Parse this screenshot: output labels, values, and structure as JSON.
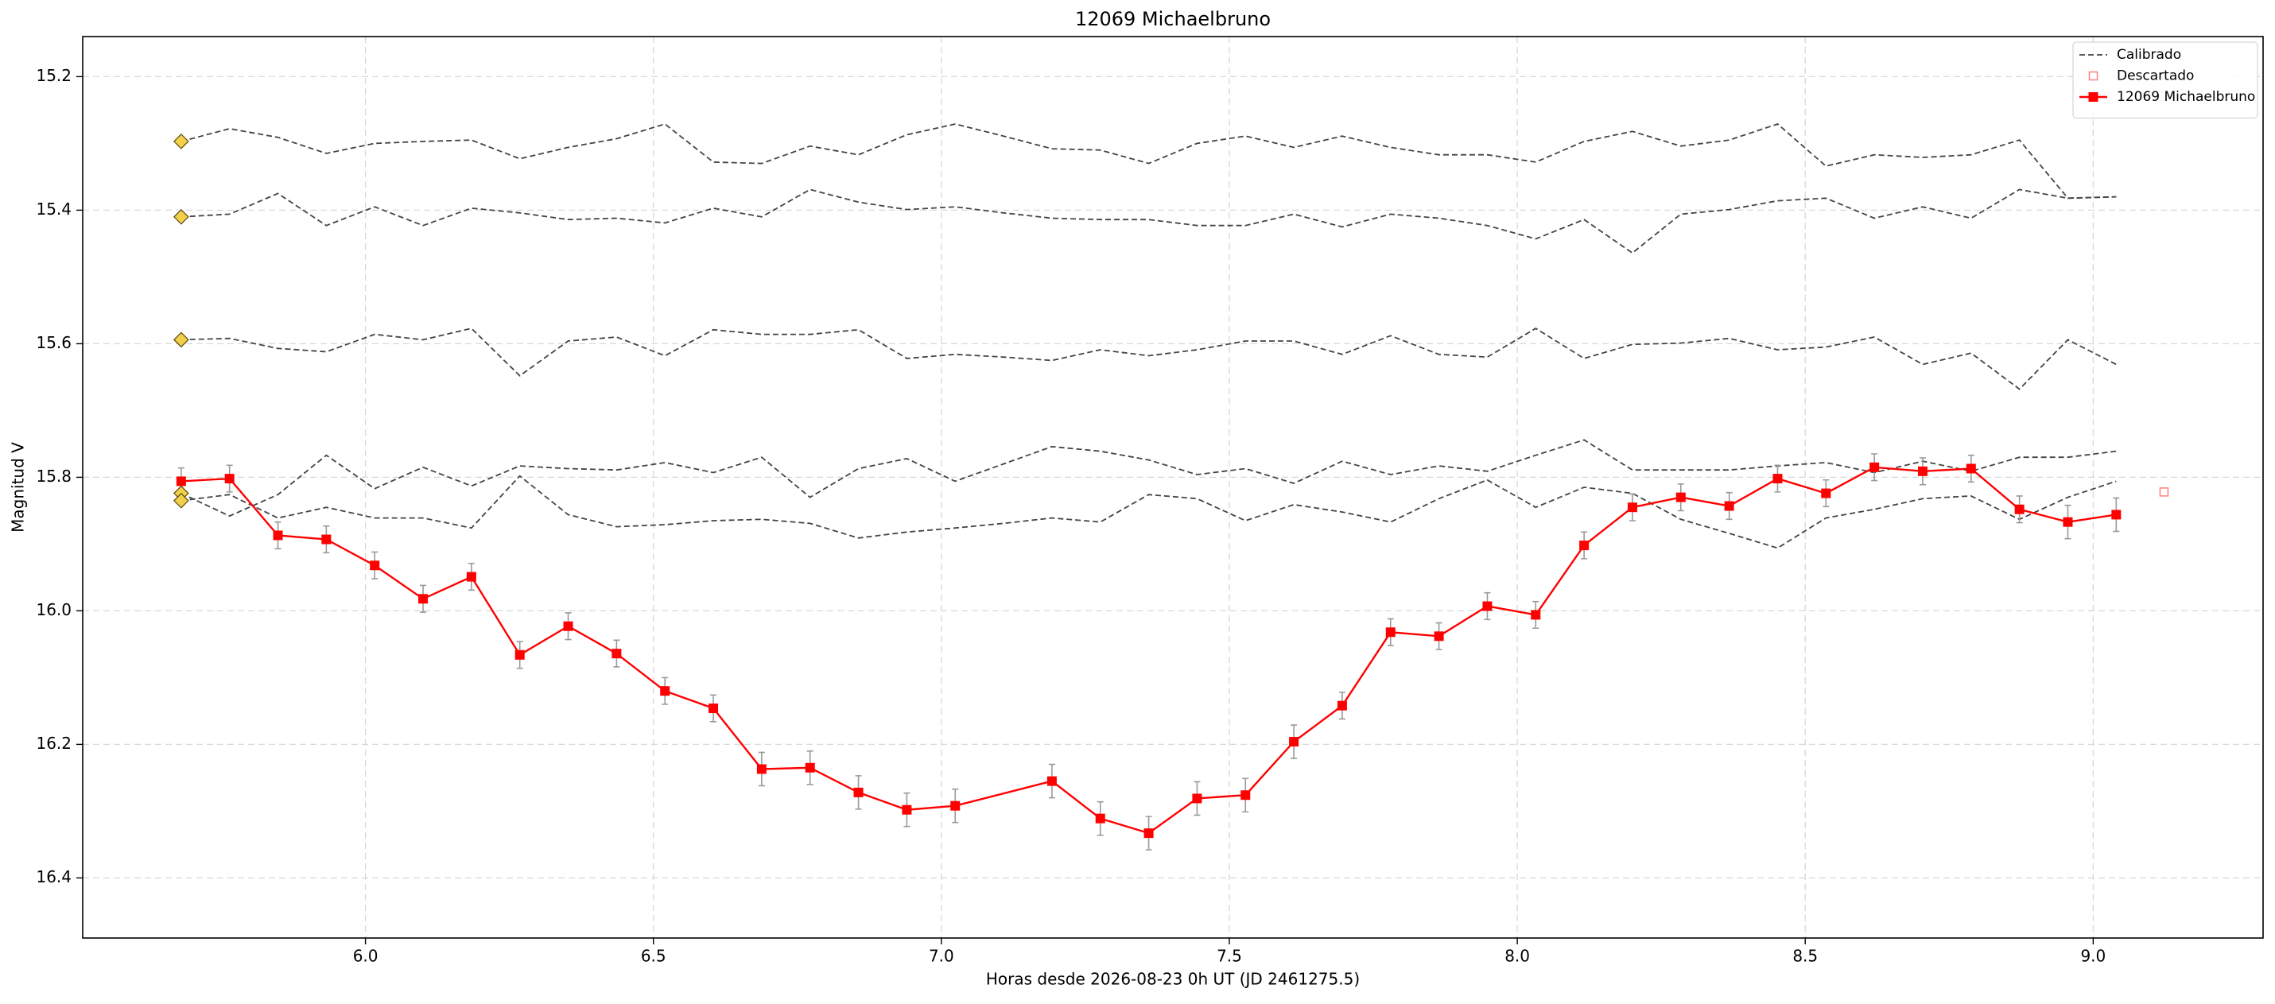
{
  "chart_data": {
    "type": "lightcurve",
    "title": "12069 Michaelbruno",
    "x_label": "Horas desde 2026-08-23 0h UT (JD 2461275.5)",
    "y_label": "Magnitud V",
    "xlim": [
      5.509,
      9.295
    ],
    "ylim": [
      15.14,
      16.49
    ],
    "y_inverted": true,
    "xticks": [
      {
        "value": 6,
        "label": "6.0"
      },
      6.5,
      {
        "value": 7,
        "label": "7.0"
      },
      7.5,
      {
        "value": 8,
        "label": "8.0"
      },
      8.5,
      {
        "value": 9,
        "label": "9.0"
      }
    ],
    "yticks": [
      15.2,
      15.4,
      15.6,
      15.8,
      {
        "value": 16,
        "label": "16.0"
      },
      16.2,
      16.4
    ],
    "grid": true,
    "legend_position": "upper-right",
    "series": [
      {
        "name": "Calibrado",
        "color": "#444444",
        "style": "dashed",
        "x": [
          5.68,
          5.764,
          5.848,
          5.932,
          6.016,
          6.1,
          6.184,
          6.268,
          6.352,
          6.436,
          6.52,
          6.604,
          6.688,
          6.772,
          6.856,
          6.94,
          7.024,
          7.108,
          7.192,
          7.276,
          7.36,
          7.444,
          7.528,
          7.612,
          7.696,
          7.78,
          7.864,
          7.948,
          8.032,
          8.116,
          8.2,
          8.284,
          8.368,
          8.452,
          8.536,
          8.62,
          8.704,
          8.788,
          8.872,
          8.956,
          9.04
        ],
        "lines": [
          [
            15.297,
            15.278,
            15.291,
            15.315,
            15.3,
            15.297,
            15.295,
            15.323,
            15.306,
            15.293,
            15.271,
            15.328,
            15.33,
            15.304,
            15.317,
            15.287,
            15.271,
            15.289,
            15.308,
            15.31,
            15.33,
            15.3,
            15.289,
            15.306,
            15.289,
            15.306,
            15.317,
            15.317,
            15.328,
            15.297,
            15.282,
            15.304,
            15.295,
            15.271,
            15.334,
            15.317,
            15.321,
            15.317,
            15.295,
            15.382,
            15.38
          ],
          [
            15.41,
            15.406,
            15.375,
            15.423,
            15.395,
            15.423,
            15.397,
            15.404,
            15.414,
            15.412,
            15.419,
            15.397,
            15.41,
            15.369,
            15.388,
            15.399,
            15.395,
            15.404,
            15.412,
            15.414,
            15.414,
            15.423,
            15.423,
            15.406,
            15.425,
            15.406,
            15.412,
            15.423,
            15.443,
            15.414,
            15.464,
            15.406,
            15.399,
            15.386,
            15.382,
            15.412,
            15.395,
            15.412,
            15.369,
            15.382,
            15.38
          ],
          [
            15.594,
            15.592,
            15.607,
            15.612,
            15.586,
            15.594,
            15.577,
            15.648,
            15.596,
            15.59,
            15.618,
            15.579,
            15.586,
            15.586,
            15.579,
            15.622,
            15.616,
            15.62,
            15.625,
            15.609,
            15.618,
            15.609,
            15.596,
            15.596,
            15.616,
            15.588,
            15.616,
            15.62,
            15.577,
            15.622,
            15.601,
            15.599,
            15.592,
            15.609,
            15.605,
            15.59,
            15.631,
            15.614,
            15.668,
            15.594,
            15.631
          ],
          [
            15.824,
            15.858,
            15.826,
            15.767,
            15.817,
            15.785,
            15.813,
            15.783,
            15.787,
            15.789,
            15.778,
            15.793,
            15.77,
            15.83,
            15.787,
            15.772,
            15.806,
            15.78,
            15.754,
            15.761,
            15.774,
            15.796,
            15.787,
            15.809,
            15.776,
            15.796,
            15.783,
            15.791,
            15.767,
            15.744,
            15.789,
            15.789,
            15.789,
            15.783,
            15.778,
            15.793,
            15.776,
            15.791,
            15.77,
            15.77,
            15.761
          ],
          [
            15.835,
            15.826,
            15.861,
            15.845,
            15.861,
            15.861,
            15.876,
            15.798,
            15.856,
            15.874,
            15.871,
            15.865,
            15.863,
            15.869,
            15.891,
            15.882,
            15.876,
            15.869,
            15.861,
            15.867,
            15.826,
            15.832,
            15.865,
            15.841,
            15.852,
            15.867,
            15.832,
            15.804,
            15.845,
            15.815,
            15.824,
            15.863,
            15.884,
            15.906,
            15.861,
            15.848,
            15.832,
            15.828,
            15.863,
            15.83,
            15.806
          ]
        ]
      },
      {
        "name": "Descartado",
        "color": "#ff8080",
        "style": "hollow-square",
        "x": [
          9.123
        ],
        "values": [
          15.822
        ]
      },
      {
        "name": "12069 Michaelbruno",
        "color": "#ff0000",
        "style": "line-square",
        "x": [
          5.68,
          5.764,
          5.848,
          5.932,
          6.016,
          6.1,
          6.184,
          6.268,
          6.352,
          6.436,
          6.52,
          6.604,
          6.688,
          6.772,
          6.856,
          6.94,
          7.024,
          7.192,
          7.276,
          7.36,
          7.444,
          7.528,
          7.612,
          7.696,
          7.78,
          7.864,
          7.948,
          8.032,
          8.116,
          8.2,
          8.284,
          8.368,
          8.452,
          8.536,
          8.62,
          8.704,
          8.788,
          8.872,
          8.956,
          9.04
        ],
        "values": [
          15.806,
          15.802,
          15.887,
          15.893,
          15.932,
          15.982,
          15.949,
          16.066,
          16.023,
          16.064,
          16.12,
          16.146,
          16.237,
          16.235,
          16.272,
          16.298,
          16.292,
          16.255,
          16.311,
          16.333,
          16.281,
          16.276,
          16.196,
          16.142,
          16.032,
          16.038,
          15.993,
          16.006,
          15.902,
          15.845,
          15.83,
          15.843,
          15.802,
          15.824,
          15.785,
          15.791,
          15.787,
          15.848,
          15.867,
          15.856
        ],
        "errors": [
          0.02,
          0.02,
          0.02,
          0.02,
          0.02,
          0.02,
          0.02,
          0.02,
          0.02,
          0.02,
          0.02,
          0.02,
          0.025,
          0.025,
          0.025,
          0.025,
          0.025,
          0.025,
          0.025,
          0.025,
          0.025,
          0.025,
          0.025,
          0.02,
          0.02,
          0.02,
          0.02,
          0.02,
          0.02,
          0.02,
          0.02,
          0.02,
          0.02,
          0.02,
          0.02,
          0.02,
          0.02,
          0.02,
          0.025,
          0.025
        ]
      }
    ],
    "reference_points": {
      "color": "#f2d04a",
      "x": [
        5.68,
        5.68,
        5.68,
        5.68,
        5.68
      ],
      "values": [
        15.297,
        15.41,
        15.594,
        15.824,
        15.835
      ]
    }
  }
}
